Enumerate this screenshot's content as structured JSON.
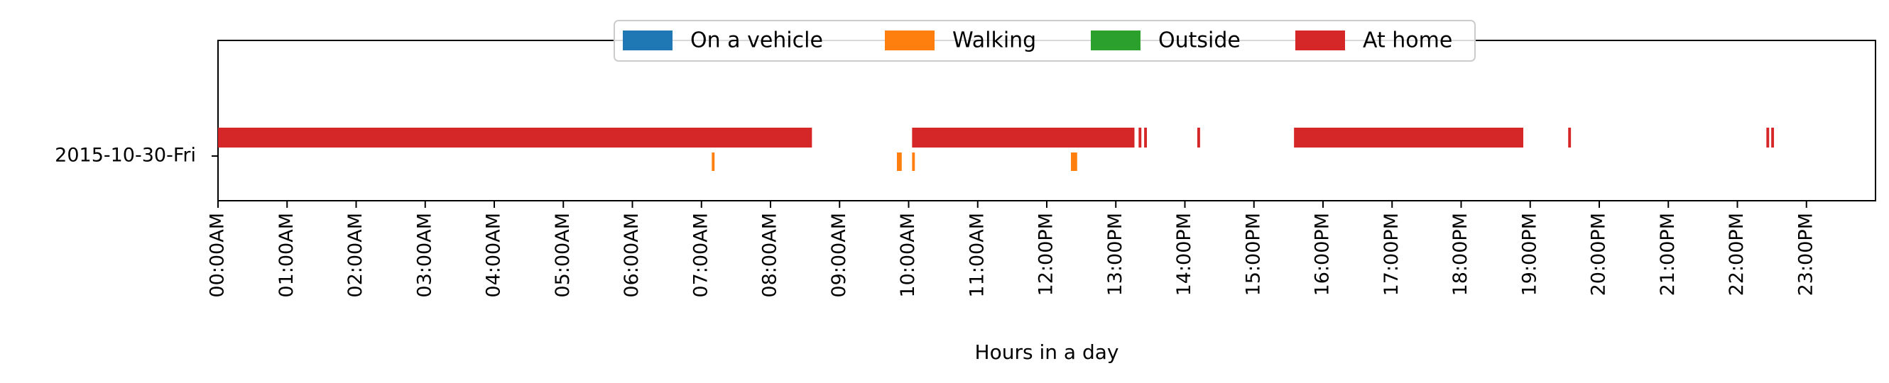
{
  "chart_data": {
    "type": "timeline",
    "title": "",
    "xlabel": "Hours in a day",
    "ylabel": "",
    "xlim": [
      0,
      24
    ],
    "categories": [
      "2015-10-30-Fri"
    ],
    "x_ticks": [
      {
        "value": 0,
        "label": "00:00AM"
      },
      {
        "value": 1,
        "label": "01:00AM"
      },
      {
        "value": 2,
        "label": "02:00AM"
      },
      {
        "value": 3,
        "label": "03:00AM"
      },
      {
        "value": 4,
        "label": "04:00AM"
      },
      {
        "value": 5,
        "label": "05:00AM"
      },
      {
        "value": 6,
        "label": "06:00AM"
      },
      {
        "value": 7,
        "label": "07:00AM"
      },
      {
        "value": 8,
        "label": "08:00AM"
      },
      {
        "value": 9,
        "label": "09:00AM"
      },
      {
        "value": 10,
        "label": "10:00AM"
      },
      {
        "value": 11,
        "label": "11:00AM"
      },
      {
        "value": 12,
        "label": "12:00PM"
      },
      {
        "value": 13,
        "label": "13:00PM"
      },
      {
        "value": 14,
        "label": "14:00PM"
      },
      {
        "value": 15,
        "label": "15:00PM"
      },
      {
        "value": 16,
        "label": "16:00PM"
      },
      {
        "value": 17,
        "label": "17:00PM"
      },
      {
        "value": 18,
        "label": "18:00PM"
      },
      {
        "value": 19,
        "label": "19:00PM"
      },
      {
        "value": 20,
        "label": "20:00PM"
      },
      {
        "value": 21,
        "label": "21:00PM"
      },
      {
        "value": 22,
        "label": "22:00PM"
      },
      {
        "value": 23,
        "label": "23:00PM"
      }
    ],
    "grid": false,
    "legend_position": "top-center",
    "series": [
      {
        "name": "On a vehicle",
        "color": "#1f77b4",
        "row": "lower",
        "intervals": []
      },
      {
        "name": "Walking",
        "color": "#ff7f0e",
        "row": "lower",
        "intervals": [
          [
            7.15,
            7.19
          ],
          [
            9.83,
            9.9
          ],
          [
            10.05,
            10.09
          ],
          [
            12.35,
            12.44
          ]
        ]
      },
      {
        "name": "Outside",
        "color": "#2ca02c",
        "row": "lower",
        "intervals": []
      },
      {
        "name": "At home",
        "color": "#d62728",
        "row": "upper",
        "intervals": [
          [
            0.0,
            8.6
          ],
          [
            10.05,
            13.27
          ],
          [
            13.33,
            13.37
          ],
          [
            13.41,
            13.45
          ],
          [
            14.18,
            14.22
          ],
          [
            15.58,
            18.9
          ],
          [
            19.55,
            19.59
          ],
          [
            22.42,
            22.46
          ],
          [
            22.49,
            22.53
          ]
        ]
      }
    ]
  }
}
